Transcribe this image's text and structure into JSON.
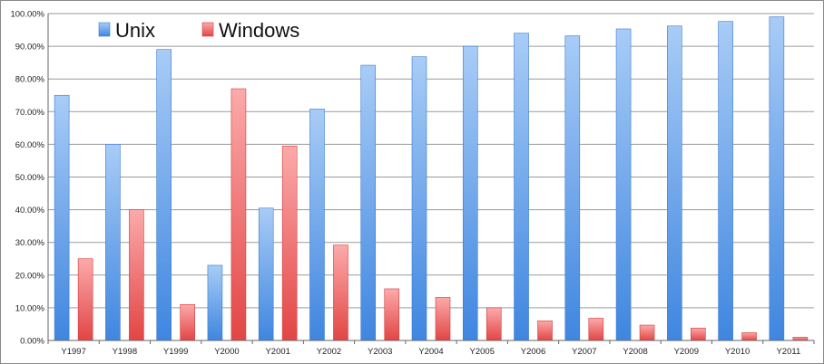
{
  "chart_data": {
    "type": "bar",
    "title": "",
    "xlabel": "",
    "ylabel": "",
    "categories": [
      "Y1997",
      "Y1998",
      "Y1999",
      "Y2000",
      "Y2001",
      "Y2002",
      "Y2003",
      "Y2004",
      "Y2005",
      "Y2006",
      "Y2007",
      "Y2008",
      "Y2009",
      "Y2010",
      "Y2011"
    ],
    "series": [
      {
        "name": "Unix",
        "color": "#5b9bea",
        "values": [
          75,
          60,
          89,
          23,
          40.5,
          70.8,
          84.2,
          86.8,
          90,
          94,
          93.2,
          95.3,
          96.2,
          97.6,
          99
        ]
      },
      {
        "name": "Windows",
        "color": "#ec5f5f",
        "values": [
          25,
          40,
          11,
          77,
          59.5,
          29.2,
          15.8,
          13.2,
          10,
          6,
          6.8,
          4.7,
          3.8,
          2.4,
          1
        ]
      }
    ],
    "ylim": [
      0,
      100
    ],
    "ytick_step": 10,
    "ytick_labels": [
      "0.00%",
      "10.00%",
      "20.00%",
      "30.00%",
      "40.00%",
      "50.00%",
      "60.00%",
      "70.00%",
      "80.00%",
      "90.00%",
      "100.00%"
    ],
    "grid": true,
    "legend_position": "top-left"
  }
}
